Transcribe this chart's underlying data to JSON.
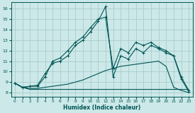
{
  "xlabel": "Humidex (Indice chaleur)",
  "bg_color": "#cce8e8",
  "grid_color": "#aacccc",
  "line_color": "#005555",
  "xlim": [
    -0.5,
    23.5
  ],
  "ylim": [
    7.6,
    16.6
  ],
  "xticks": [
    0,
    1,
    2,
    3,
    4,
    5,
    6,
    7,
    8,
    9,
    10,
    11,
    12,
    13,
    14,
    15,
    16,
    17,
    18,
    19,
    20,
    21,
    22,
    23
  ],
  "yticks": [
    8,
    9,
    10,
    11,
    12,
    13,
    14,
    15,
    16
  ],
  "line_flat_x": [
    0,
    1,
    2,
    3,
    4,
    5,
    6,
    7,
    8,
    9,
    10,
    11,
    12,
    13,
    14,
    15,
    16,
    17,
    18,
    19,
    20,
    21,
    22,
    23
  ],
  "line_flat_y": [
    8.9,
    8.5,
    8.3,
    8.3,
    8.3,
    8.3,
    8.3,
    8.3,
    8.3,
    8.3,
    8.3,
    8.3,
    8.3,
    8.3,
    8.3,
    8.3,
    8.3,
    8.3,
    8.3,
    8.3,
    8.3,
    8.3,
    8.3,
    8.3
  ],
  "line_slope_x": [
    0,
    1,
    2,
    3,
    4,
    5,
    6,
    7,
    8,
    9,
    10,
    11,
    12,
    13,
    14,
    15,
    16,
    17,
    18,
    19,
    20,
    21,
    22,
    23
  ],
  "line_slope_y": [
    8.9,
    8.5,
    8.4,
    8.4,
    8.5,
    8.6,
    8.7,
    8.8,
    9.0,
    9.2,
    9.5,
    9.8,
    10.1,
    10.3,
    10.5,
    10.6,
    10.7,
    10.8,
    10.9,
    11.0,
    10.5,
    8.5,
    8.2,
    8.0
  ],
  "line_marked1_x": [
    0,
    1,
    2,
    3,
    4,
    5,
    6,
    7,
    8,
    9,
    10,
    11,
    12,
    13,
    14,
    15,
    16,
    17,
    18,
    19,
    20,
    21,
    22,
    23
  ],
  "line_marked1_y": [
    8.9,
    8.5,
    8.6,
    8.7,
    9.8,
    10.8,
    11.0,
    11.5,
    12.5,
    13.0,
    13.8,
    14.8,
    16.2,
    9.5,
    11.5,
    11.2,
    12.2,
    11.8,
    12.5,
    12.2,
    11.8,
    11.5,
    9.3,
    8.1
  ],
  "line_marked2_x": [
    0,
    1,
    2,
    3,
    4,
    5,
    6,
    7,
    8,
    9,
    10,
    11,
    12,
    13,
    14,
    15,
    16,
    17,
    18,
    19,
    20,
    21,
    22,
    23
  ],
  "line_marked2_y": [
    8.9,
    8.5,
    8.6,
    8.6,
    9.5,
    11.0,
    11.3,
    12.0,
    12.8,
    13.3,
    14.2,
    15.0,
    15.2,
    10.3,
    12.2,
    11.8,
    12.8,
    12.5,
    12.8,
    12.3,
    12.0,
    11.5,
    9.5,
    8.2
  ],
  "marker": "+"
}
